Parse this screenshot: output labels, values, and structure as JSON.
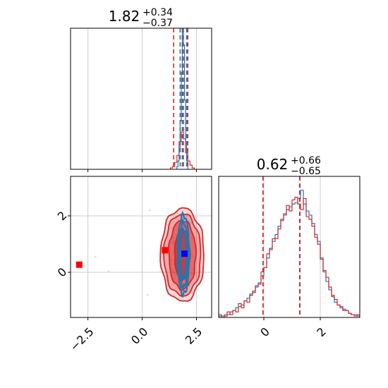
{
  "colors": {
    "red": "#d62728",
    "blue": "#1f77b4",
    "grid": "#cccccc",
    "truth_red": "#ff0000",
    "truth_blue": "#0000ff"
  },
  "chart_data": {
    "type": "corner",
    "grid": true,
    "titles": {
      "param1": {
        "median": "1.82",
        "plus": "+0.34",
        "minus": "−0.37"
      },
      "param2": {
        "median": "0.62",
        "plus": "+0.66",
        "minus": "−0.65"
      }
    },
    "x1_range": [
      -3.3,
      3.2
    ],
    "x2_range": [
      -1.6,
      3.4
    ],
    "x1_ticks": [
      {
        "value": -2.5,
        "label": "−2.5"
      },
      {
        "value": 0.0,
        "label": "0.0"
      },
      {
        "value": 2.5,
        "label": "2.5"
      }
    ],
    "x2_ticks": [
      {
        "value": 0,
        "label": "0"
      },
      {
        "value": 2,
        "label": "2"
      }
    ],
    "y2_ticks": [
      {
        "value": 0,
        "label": "0"
      },
      {
        "value": 2,
        "label": "2"
      }
    ],
    "quantiles_param1": {
      "red": [
        1.45,
        1.85,
        2.1
      ],
      "blue": [
        1.75,
        1.9,
        2.05
      ]
    },
    "quantiles_param2": {
      "red": [
        -0.03,
        1.27
      ],
      "blue": [
        -0.03,
        1.28
      ]
    },
    "hist1": {
      "series": [
        {
          "color": "red",
          "bin_start": 1.3,
          "bin_width": 0.1,
          "values": [
            0.01,
            0.02,
            0.05,
            0.1,
            0.2,
            0.27,
            0.22,
            0.12,
            0.06,
            0.03,
            0.01
          ]
        },
        {
          "color": "blue",
          "bin_start": 1.6,
          "bin_width": 0.05,
          "values": [
            0.02,
            0.06,
            0.15,
            0.35,
            0.7,
            0.99,
            0.9,
            0.5,
            0.2,
            0.06
          ]
        }
      ]
    },
    "hist2": {
      "bin_start": -1.6,
      "bin_width": 0.1,
      "series": [
        {
          "color": "blue",
          "values": [
            0.01,
            0.01,
            0.02,
            0.02,
            0.04,
            0.05,
            0.07,
            0.08,
            0.09,
            0.12,
            0.14,
            0.17,
            0.18,
            0.22,
            0.25,
            0.3,
            0.36,
            0.43,
            0.5,
            0.55,
            0.6,
            0.66,
            0.7,
            0.75,
            0.78,
            0.8,
            0.82,
            0.83,
            0.86,
            0.92,
            0.82,
            0.77,
            0.74,
            0.68,
            0.6,
            0.55,
            0.42,
            0.33,
            0.26,
            0.2,
            0.15,
            0.11,
            0.09,
            0.08,
            0.06,
            0.05,
            0.03,
            0.02,
            0.02,
            0.01
          ]
        },
        {
          "color": "red",
          "values": [
            0.02,
            0.0,
            0.01,
            0.04,
            0.02,
            0.05,
            0.04,
            0.1,
            0.07,
            0.12,
            0.11,
            0.16,
            0.19,
            0.23,
            0.24,
            0.33,
            0.36,
            0.46,
            0.49,
            0.57,
            0.57,
            0.64,
            0.71,
            0.74,
            0.81,
            0.77,
            0.85,
            0.87,
            0.82,
            0.78,
            0.86,
            0.73,
            0.71,
            0.66,
            0.58,
            0.53,
            0.43,
            0.34,
            0.29,
            0.22,
            0.16,
            0.13,
            0.09,
            0.07,
            0.05,
            0.05,
            0.03,
            0.02,
            0.01,
            0.02
          ]
        }
      ]
    },
    "scatter2d": {
      "points_red": {
        "x": [
          2.22,
          2.18,
          2.02,
          1.45,
          1.81,
          2.4,
          1.75,
          2.11,
          1.35,
          2.33,
          1.45,
          1.88,
          1.48,
          1.77,
          1.5,
          1.92,
          2.31,
          1.25,
          1.3,
          1.8,
          1.39,
          1.96,
          1.44,
          1.78,
          1.99,
          2.33,
          2.25,
          1.47,
          1.55,
          2.42,
          1.84,
          1.95,
          2.37,
          1.92,
          1.9,
          1.44,
          1.43,
          1.88,
          1.61,
          1.67,
          2.0,
          1.57,
          1.87,
          2.11,
          1.47,
          1.86,
          2.15,
          2.08,
          1.82,
          1.4,
          2.22,
          1.61,
          1.72,
          1.72,
          1.39,
          1.59,
          2.01,
          1.48,
          1.51,
          1.63,
          2.3,
          1.5,
          1.94,
          1.33,
          1.89,
          1.85,
          2.03,
          1.32,
          1.45,
          1.69
        ],
        "y": [
          0.79,
          0.84,
          -0.4,
          1.22,
          -0.37,
          -0.07,
          -0.38,
          1.28,
          1.56,
          0.58,
          -0.43,
          0.61,
          0.72,
          1.14,
          1.06,
          1.61,
          1.21,
          0.54,
          0.43,
          0.14,
          0.1,
          0.24,
          1.06,
          2.07,
          1.79,
          1.29,
          1.75,
          -0.02,
          0.12,
          1.12,
          1.48,
          1.07,
          0.11,
          0.45,
          0.84,
          0.67,
          0.03,
          0.43,
          1.17,
          0.23,
          -0.06,
          -0.08,
          -0.28,
          0.41,
          0.77,
          0.31,
          -0.47,
          0.81,
          1.32,
          1.26,
          0.6,
          2.09,
          1.21,
          1.49,
          1.03,
          1.34,
          0.99,
          1.12,
          0.46,
          0.86,
          -0.03,
          0.97,
          1.61,
          0.44,
          0.47,
          0.38,
          0.63,
          0.3,
          -0.24,
          0.2
        ]
      },
      "points_red_outliers": {
        "x": [
          -2.15,
          -1.55,
          0.35,
          0.25
        ],
        "y": [
          0.55,
          0.03,
          2.2,
          -0.8
        ]
      },
      "truth_points": [
        {
          "color": "truth_red",
          "x": -2.9,
          "y": 0.27
        },
        {
          "color": "truth_red",
          "x": 1.05,
          "y": 0.78
        },
        {
          "color": "truth_blue",
          "x": 1.95,
          "y": 0.66
        }
      ],
      "contours_red": [
        {
          "cx": 1.85,
          "cy": 0.62,
          "rx": 0.35,
          "ry": 0.9
        },
        {
          "cx": 1.85,
          "cy": 0.62,
          "rx": 0.62,
          "ry": 1.22
        },
        {
          "cx": 1.85,
          "cy": 0.62,
          "rx": 0.85,
          "ry": 1.45
        },
        {
          "cx": 1.85,
          "cy": 0.62,
          "rx": 1.0,
          "ry": 1.65
        }
      ],
      "contours_blue": [
        {
          "cx": 1.9,
          "cy": 0.62,
          "rx": 0.12,
          "ry": 0.85
        },
        {
          "cx": 1.9,
          "cy": 0.62,
          "rx": 0.2,
          "ry": 1.15
        },
        {
          "cx": 1.9,
          "cy": 0.62,
          "rx": 0.27,
          "ry": 1.4
        }
      ]
    }
  }
}
